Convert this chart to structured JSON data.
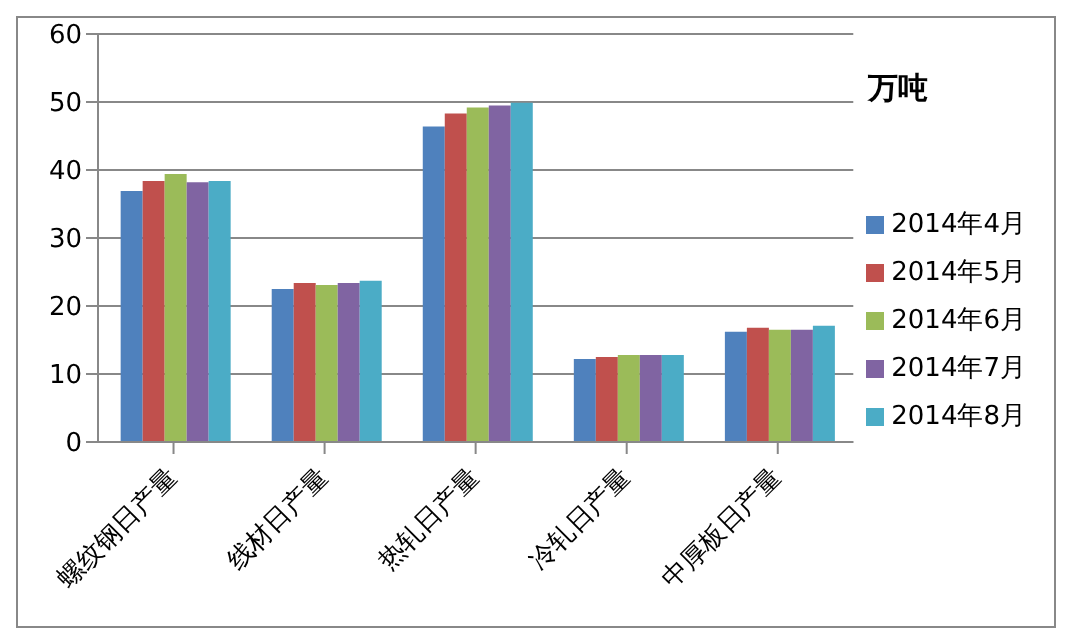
{
  "chart_data": {
    "type": "bar",
    "ylabel": "万吨",
    "categories": [
      "螺纹钢日产量",
      "线材日产量",
      "热轧日产量",
      "冷轧日产量",
      "中厚板日产量"
    ],
    "series": [
      {
        "name": "2014年4月",
        "color": "#4f81bd",
        "values": [
          36.9,
          22.5,
          46.4,
          12.2,
          16.2
        ]
      },
      {
        "name": "2014年5月",
        "color": "#c0504d",
        "values": [
          38.4,
          23.4,
          48.3,
          12.5,
          16.8
        ]
      },
      {
        "name": "2014年6月",
        "color": "#9bbb59",
        "values": [
          39.4,
          23.1,
          49.2,
          12.8,
          16.5
        ]
      },
      {
        "name": "2014年7月",
        "color": "#8064a2",
        "values": [
          38.2,
          23.4,
          49.5,
          12.8,
          16.5
        ]
      },
      {
        "name": "2014年8月",
        "color": "#4bacc6",
        "values": [
          38.4,
          23.7,
          49.9,
          12.8,
          17.1
        ]
      }
    ],
    "ylim": [
      0,
      60
    ],
    "yticks": [
      0,
      10,
      20,
      30,
      40,
      50,
      60
    ],
    "grid": "y",
    "legend": "right"
  }
}
